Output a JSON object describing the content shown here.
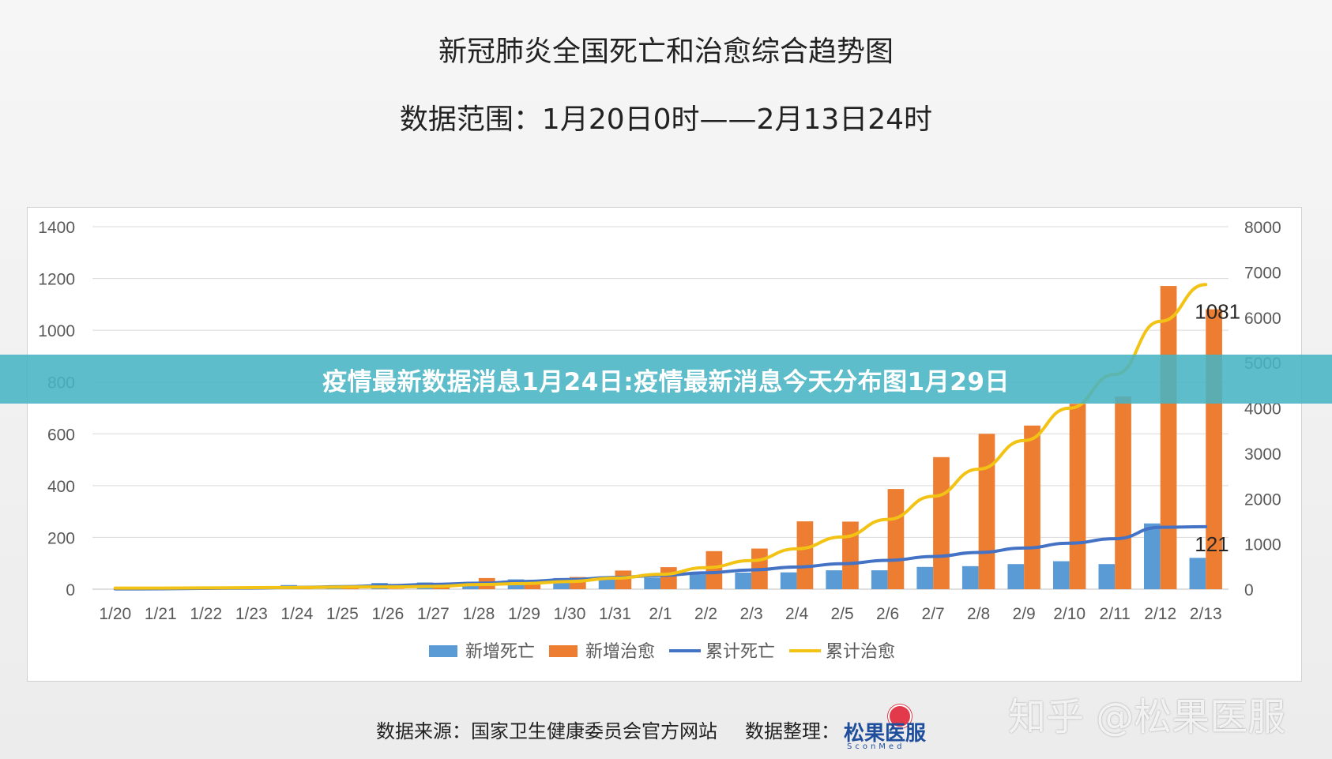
{
  "header": {
    "title": "新冠肺炎全国死亡和治愈综合趋势图",
    "subtitle": "数据范围：1月20日0时——2月13日24时"
  },
  "banner": {
    "text": "疫情最新数据消息1月24日:疫情最新消息今天分布图1月29日"
  },
  "footer": {
    "source": "数据来源：国家卫生健康委员会官方网站",
    "editor": "数据整理：",
    "logo_text": "松果医服",
    "logo_sub": "SconMed"
  },
  "watermark": "知乎 @松果医服",
  "colors": {
    "new_deaths": "#5b9bd5",
    "new_cured": "#ed7d31",
    "cum_deaths": "#4472c4",
    "cum_cured": "#f2c314"
  },
  "chart_data": {
    "type": "bar",
    "categories": [
      "1/20",
      "1/21",
      "1/22",
      "1/23",
      "1/24",
      "1/25",
      "1/26",
      "1/27",
      "1/28",
      "1/29",
      "1/30",
      "1/31",
      "2/1",
      "2/2",
      "2/3",
      "2/4",
      "2/5",
      "2/6",
      "2/7",
      "2/8",
      "2/9",
      "2/10",
      "2/11",
      "2/12",
      "2/13"
    ],
    "y_left": {
      "ticks": [
        0,
        200,
        400,
        600,
        800,
        1000,
        1200,
        1400
      ],
      "range": [
        0,
        1400
      ]
    },
    "y_right": {
      "ticks": [
        0,
        1000,
        2000,
        3000,
        4000,
        5000,
        6000,
        7000,
        8000
      ],
      "range": [
        0,
        8000
      ]
    },
    "series": [
      {
        "name": "新增死亡",
        "type": "bar",
        "axis": "left",
        "color": "#5b9bd5",
        "values": [
          0,
          3,
          8,
          8,
          16,
          15,
          24,
          26,
          26,
          38,
          43,
          46,
          45,
          57,
          64,
          65,
          73,
          73,
          86,
          89,
          97,
          108,
          97,
          254,
          121
        ]
      },
      {
        "name": "新增治愈",
        "type": "bar",
        "axis": "left",
        "color": "#ed7d31",
        "values": [
          0,
          0,
          0,
          6,
          3,
          11,
          2,
          9,
          43,
          21,
          47,
          72,
          85,
          147,
          157,
          262,
          261,
          387,
          510,
          600,
          632,
          716,
          744,
          1171,
          1081
        ]
      },
      {
        "name": "累计死亡",
        "type": "line",
        "axis": "right",
        "color": "#4472c4",
        "values": [
          6,
          9,
          17,
          25,
          41,
          56,
          80,
          106,
          132,
          170,
          213,
          259,
          304,
          361,
          425,
          490,
          563,
          636,
          722,
          811,
          908,
          1016,
          1113,
          1367,
          1380
        ]
      },
      {
        "name": "累计治愈",
        "type": "line",
        "axis": "right",
        "color": "#f2c314",
        "values": [
          25,
          25,
          28,
          34,
          38,
          49,
          51,
          60,
          103,
          124,
          171,
          243,
          328,
          475,
          632,
          892,
          1153,
          1540,
          2050,
          2649,
          3281,
          3996,
          4740,
          5911,
          6723
        ]
      }
    ],
    "annotations": [
      {
        "text": "1081",
        "category": "2/13",
        "series": "新增治愈"
      },
      {
        "text": "121",
        "category": "2/13",
        "series": "新增死亡"
      }
    ],
    "legend": "bottom",
    "grid": true
  }
}
